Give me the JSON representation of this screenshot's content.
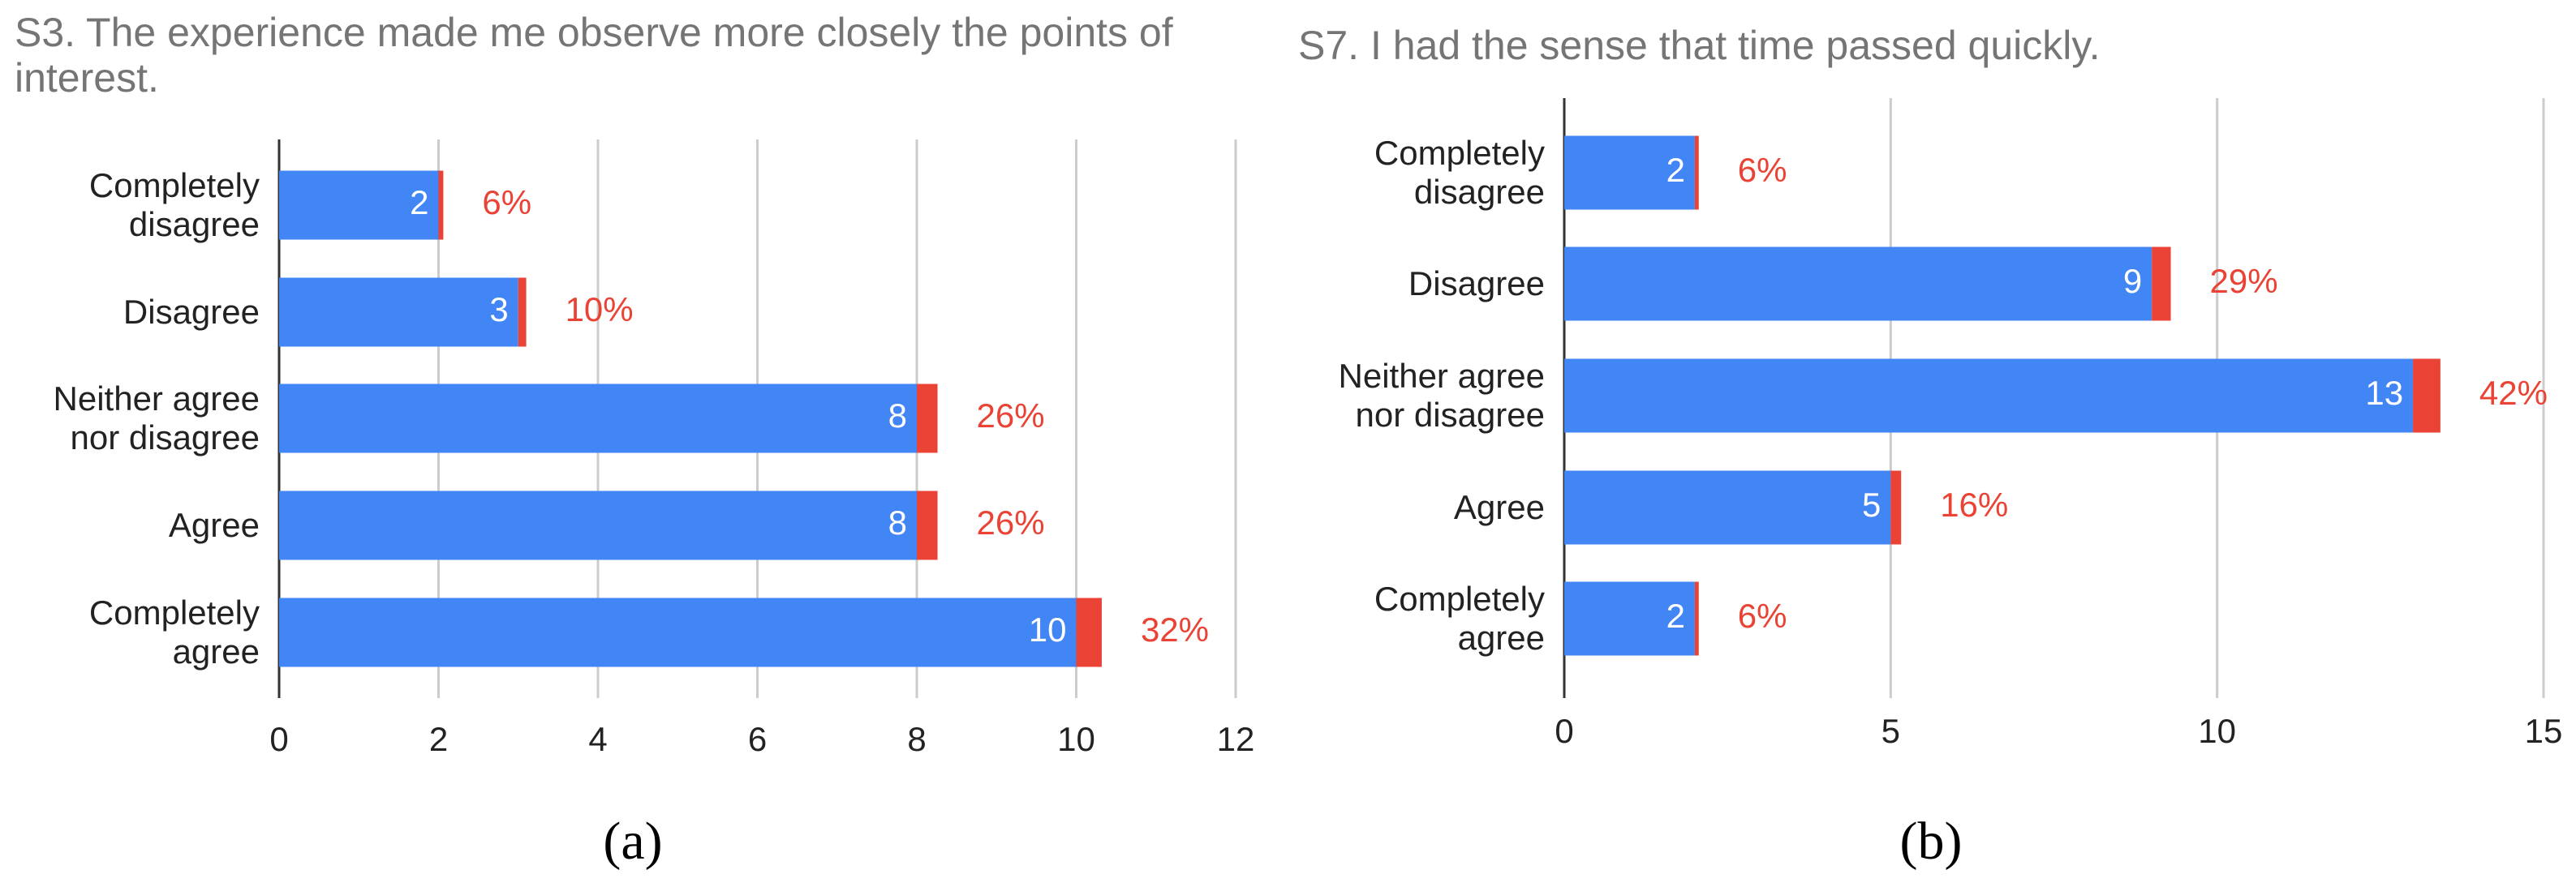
{
  "chart_data": [
    {
      "type": "bar",
      "orientation": "horizontal",
      "stacked": true,
      "title": "S3. The experience made me observe more closely the points of interest.",
      "caption": "(a)",
      "categories": [
        "Completely disagree",
        "Disagree",
        "Neither agree nor disagree",
        "Agree",
        "Completely agree"
      ],
      "series": [
        {
          "color": "#4285f4",
          "values": [
            2,
            3,
            8,
            8,
            10
          ]
        },
        {
          "color": "#ea4335",
          "values": [
            0.06,
            0.1,
            0.26,
            0.26,
            0.32
          ],
          "value_labels": [
            "6%",
            "10%",
            "26%",
            "26%",
            "32%"
          ]
        }
      ],
      "xlim": [
        0,
        12
      ],
      "xticks": [
        0,
        2,
        4,
        6,
        8,
        10,
        12
      ],
      "grid": true
    },
    {
      "type": "bar",
      "orientation": "horizontal",
      "stacked": true,
      "title": "S7. I had the sense that time passed quickly.",
      "caption": "(b)",
      "categories": [
        "Completely disagree",
        "Disagree",
        "Neither agree nor disagree",
        "Agree",
        "Completely agree"
      ],
      "series": [
        {
          "color": "#4285f4",
          "values": [
            2,
            9,
            13,
            5,
            2
          ]
        },
        {
          "color": "#ea4335",
          "values": [
            0.06,
            0.29,
            0.42,
            0.16,
            0.06
          ],
          "value_labels": [
            "6%",
            "29%",
            "42%",
            "16%",
            "6%"
          ]
        }
      ],
      "xlim": [
        0,
        15
      ],
      "xticks": [
        0,
        5,
        10,
        15
      ],
      "grid": true
    }
  ]
}
